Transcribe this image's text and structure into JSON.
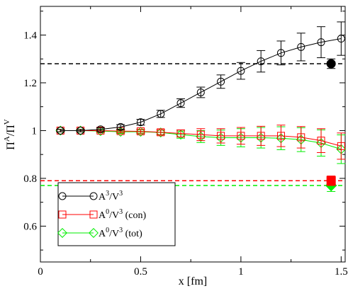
{
  "chart_data": {
    "type": "line",
    "xlabel": "x [fm]",
    "ylabel": "Π^A/Π^V",
    "xlim": [
      0,
      1.52
    ],
    "ylim": [
      0.45,
      1.52
    ],
    "x_ticks": [
      0,
      0.5,
      1,
      1.5
    ],
    "x_tick_labels": [
      "0",
      "0.5",
      "1",
      "1.5"
    ],
    "y_ticks": [
      0.6,
      0.8,
      1.0,
      1.2,
      1.4
    ],
    "y_tick_labels": [
      "0.6",
      "0.8",
      "1",
      "1.2",
      "1.4"
    ],
    "legend_position": "bottom-left",
    "grid": false,
    "series": [
      {
        "name": "A3/V3",
        "legend_main": "A",
        "legend_sup1": "3",
        "legend_mid": "/V",
        "legend_sup2": "3",
        "legend_suffix": "",
        "color": "#000000",
        "marker": "circle",
        "x": [
          0.1,
          0.2,
          0.3,
          0.4,
          0.5,
          0.6,
          0.7,
          0.8,
          0.9,
          1.0,
          1.1,
          1.2,
          1.3,
          1.4,
          1.5
        ],
        "y": [
          1.0,
          1.0,
          1.005,
          1.015,
          1.035,
          1.07,
          1.115,
          1.16,
          1.205,
          1.25,
          1.29,
          1.325,
          1.35,
          1.37,
          1.385
        ],
        "err": [
          0.005,
          0.005,
          0.007,
          0.01,
          0.012,
          0.015,
          0.018,
          0.022,
          0.028,
          0.035,
          0.045,
          0.05,
          0.058,
          0.065,
          0.07
        ],
        "reference": {
          "y": 1.28,
          "x": 1.45,
          "err": 0.02
        }
      },
      {
        "name": "A0/V3 (con)",
        "legend_main": "A",
        "legend_sup1": "0",
        "legend_mid": "/V",
        "legend_sup2": "3",
        "legend_suffix": " (con)",
        "color": "#ff0000",
        "marker": "square",
        "x": [
          0.1,
          0.2,
          0.3,
          0.4,
          0.5,
          0.6,
          0.7,
          0.8,
          0.9,
          1.0,
          1.1,
          1.2,
          1.3,
          1.4,
          1.5
        ],
        "y": [
          1.0,
          1.0,
          1.0,
          0.998,
          0.997,
          0.993,
          0.988,
          0.983,
          0.978,
          0.978,
          0.978,
          0.978,
          0.972,
          0.958,
          0.935
        ],
        "err": [
          0.005,
          0.005,
          0.006,
          0.007,
          0.008,
          0.01,
          0.015,
          0.025,
          0.03,
          0.035,
          0.04,
          0.045,
          0.045,
          0.05,
          0.055
        ],
        "reference": {
          "y": 0.79,
          "x": 1.45,
          "err": 0.02
        }
      },
      {
        "name": "A0/V3 (tot)",
        "legend_main": "A",
        "legend_sup1": "0",
        "legend_mid": "/V",
        "legend_sup2": "3",
        "legend_suffix": " (tot)",
        "color": "#00ee00",
        "marker": "diamond",
        "x": [
          0.1,
          0.2,
          0.3,
          0.4,
          0.5,
          0.6,
          0.7,
          0.8,
          0.9,
          1.0,
          1.1,
          1.2,
          1.3,
          1.4,
          1.5
        ],
        "y": [
          1.0,
          1.0,
          0.998,
          0.995,
          0.995,
          0.992,
          0.983,
          0.975,
          0.97,
          0.97,
          0.97,
          0.968,
          0.962,
          0.948,
          0.922
        ],
        "err": [
          0.005,
          0.005,
          0.006,
          0.007,
          0.008,
          0.01,
          0.015,
          0.025,
          0.032,
          0.038,
          0.043,
          0.048,
          0.05,
          0.055,
          0.06
        ],
        "reference": {
          "y": 0.77,
          "x": 1.45,
          "err": 0.025
        }
      }
    ]
  }
}
